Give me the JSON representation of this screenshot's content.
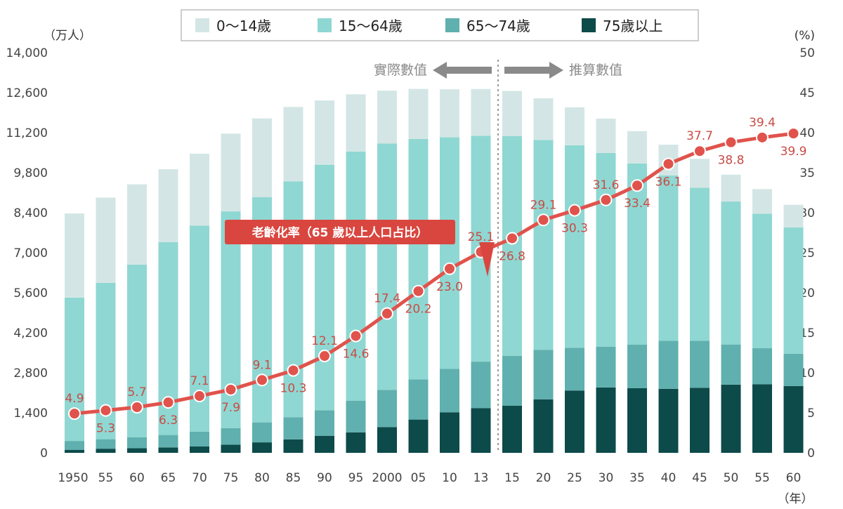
{
  "chart_data": {
    "type": "bar",
    "stacked": true,
    "categories": [
      "1950",
      "55",
      "60",
      "65",
      "70",
      "75",
      "80",
      "85",
      "90",
      "95",
      "2000",
      "05",
      "10",
      "13",
      "15",
      "20",
      "25",
      "30",
      "35",
      "40",
      "45",
      "50",
      "55",
      "60"
    ],
    "series": [
      {
        "name": "75歳以上",
        "color": "#0d4a4a",
        "values": [
          106,
          144,
          163,
          189,
          221,
          284,
          366,
          471,
          597,
          717,
          901,
          1164,
          1419,
          1560,
          1646,
          1872,
          2180,
          2288,
          2260,
          2239,
          2277,
          2385,
          2401,
          2336
        ]
      },
      {
        "name": "65〜74歳",
        "color": "#5fb0ae",
        "values": [
          309,
          332,
          377,
          435,
          518,
          582,
          699,
          776,
          892,
          1109,
          1301,
          1407,
          1517,
          1630,
          1749,
          1733,
          1497,
          1428,
          1522,
          1681,
          1643,
          1406,
          1258,
          1133
        ]
      },
      {
        "name": "15〜64歳",
        "color": "#8fd7d2",
        "values": [
          5017,
          5473,
          6047,
          6744,
          7212,
          7581,
          7883,
          8251,
          8590,
          8716,
          8622,
          8409,
          8103,
          7901,
          7682,
          7341,
          7085,
          6773,
          6343,
          5787,
          5353,
          5001,
          4706,
          4418
        ]
      },
      {
        "name": "0〜14歳",
        "color": "#d3e6e5",
        "values": [
          2943,
          2980,
          2807,
          2553,
          2515,
          2722,
          2751,
          2603,
          2249,
          2001,
          1847,
          1752,
          1680,
          1639,
          1583,
          1457,
          1325,
          1204,
          1129,
          1073,
          1012,
          939,
          861,
          791
        ]
      }
    ],
    "line": {
      "name": "老齢化率（65 歳以上人口占比）",
      "color": "#e0534c",
      "values": [
        4.9,
        5.3,
        5.7,
        6.3,
        7.1,
        7.9,
        9.1,
        10.3,
        12.1,
        14.6,
        17.4,
        20.2,
        23.0,
        25.1,
        26.8,
        29.1,
        30.3,
        31.6,
        33.4,
        36.1,
        37.7,
        38.8,
        39.4,
        39.9
      ],
      "labels": [
        "4.9",
        "5.3",
        "5.7",
        "6.3",
        "7.1",
        "7.9",
        "9.1",
        "10.3",
        "12.1",
        "14.6",
        "17.4",
        "20.2",
        "23.0",
        "25.1",
        "26.8",
        "29.1",
        "30.3",
        "31.6",
        "33.4",
        "36.1",
        "37.7",
        "38.8",
        "39.4",
        "39.9"
      ],
      "label_pos": [
        "above",
        "below",
        "above",
        "below",
        "above",
        "below",
        "above",
        "below",
        "above",
        "below",
        "above",
        "below",
        "below",
        "above",
        "below",
        "above",
        "below",
        "above",
        "below",
        "below",
        "above",
        "below",
        "above",
        "below"
      ]
    },
    "ylim_left": [
      0,
      14000
    ],
    "yticks_left": [
      "0",
      "1,400",
      "2,800",
      "4,200",
      "5,600",
      "7,000",
      "8,400",
      "9,800",
      "11,200",
      "12,600",
      "14,000"
    ],
    "ylim_right": [
      0,
      50
    ],
    "yticks_right": [
      "0",
      "5",
      "10",
      "15",
      "20",
      "25",
      "30",
      "35",
      "40",
      "45",
      "50"
    ],
    "ylabel_left": "（万人）",
    "ylabel_right": "(%)",
    "xlabel": "（年）",
    "legend_placement": "top",
    "grid": false
  },
  "annotations": {
    "actual": "實際數值",
    "projected": "推算數值",
    "callout": "老齡化率（65 歲以上人口占比）"
  },
  "legend": [
    {
      "label": "0〜14歲",
      "color": "#d3e6e5"
    },
    {
      "label": "15〜64歲",
      "color": "#8fd7d2"
    },
    {
      "label": "65〜74歲",
      "color": "#5fb0ae"
    },
    {
      "label": "75歲以上",
      "color": "#0d4a4a"
    }
  ]
}
